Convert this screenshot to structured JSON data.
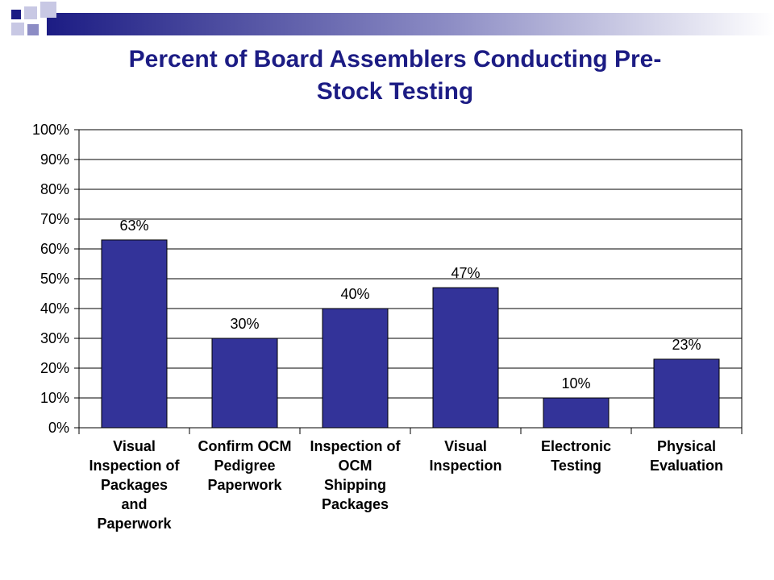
{
  "slide": {
    "title": "Percent of Board Assemblers Conducting Pre-Stock Testing",
    "title_lines": [
      "Percent of Board Assemblers Conducting Pre-",
      "Stock Testing"
    ],
    "accent_color": "#1c1c84"
  },
  "chart_data": {
    "type": "bar",
    "title": "",
    "xlabel": "",
    "ylabel": "",
    "ylim": [
      0,
      100
    ],
    "y_ticks": [
      "0%",
      "10%",
      "20%",
      "30%",
      "40%",
      "50%",
      "60%",
      "70%",
      "80%",
      "90%",
      "100%"
    ],
    "grid": true,
    "bar_color": "#333399",
    "categories": [
      "Visual Inspection of Packages and Paperwork",
      "Confirm OCM Pedigree Paperwork",
      "Inspection of OCM Shipping Packages",
      "Visual Inspection",
      "Electronic Testing",
      "Physical Evaluation"
    ],
    "category_lines": [
      [
        "Visual",
        "Inspection of",
        "Packages",
        "and",
        "Paperwork"
      ],
      [
        "Confirm OCM",
        "Pedigree",
        "Paperwork"
      ],
      [
        "Inspection of",
        "OCM",
        "Shipping",
        "Packages"
      ],
      [
        "Visual",
        "Inspection"
      ],
      [
        "Electronic",
        "Testing"
      ],
      [
        "Physical",
        "Evaluation"
      ]
    ],
    "values": [
      63,
      30,
      40,
      47,
      10,
      23
    ],
    "data_labels": [
      "63%",
      "30%",
      "40%",
      "47%",
      "10%",
      "23%"
    ]
  }
}
